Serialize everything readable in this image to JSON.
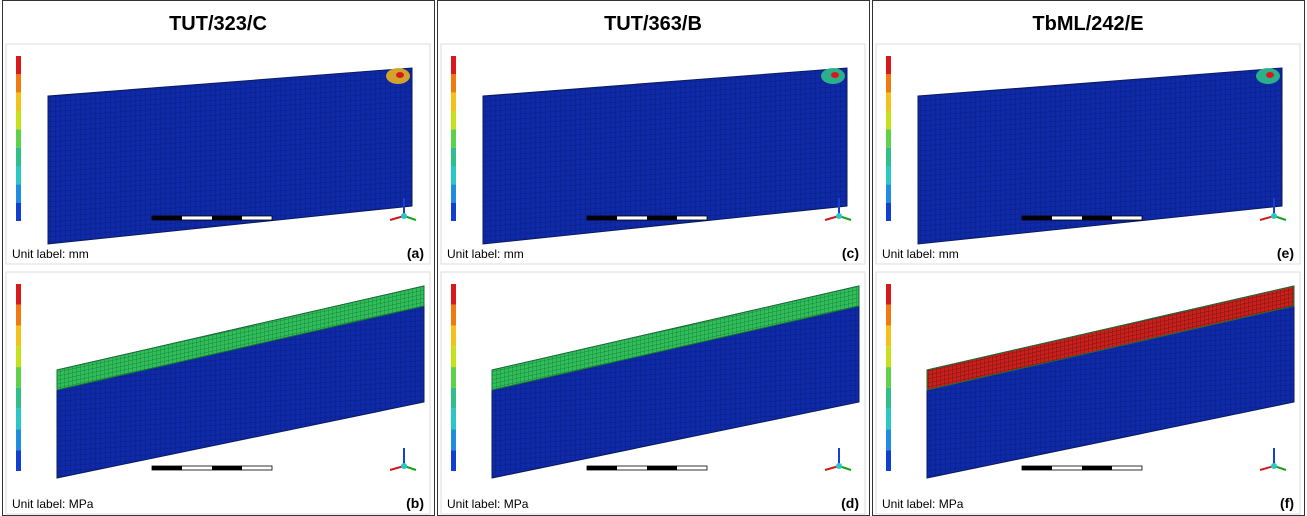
{
  "panels": [
    {
      "title": "TUT/323/C",
      "images": [
        {
          "unit_label": "Unit label: mm",
          "letter": "(a)"
        },
        {
          "unit_label": "Unit label: MPa",
          "letter": "(b)"
        }
      ]
    },
    {
      "title": "TUT/363/B",
      "images": [
        {
          "unit_label": "Unit label: mm",
          "letter": "(c)"
        },
        {
          "unit_label": "Unit label: MPa",
          "letter": "(d)"
        }
      ]
    },
    {
      "title": "TbML/242/E",
      "images": [
        {
          "unit_label": "Unit label: mm",
          "letter": "(e)"
        },
        {
          "unit_label": "Unit label: MPa",
          "letter": "(f)"
        }
      ]
    }
  ]
}
